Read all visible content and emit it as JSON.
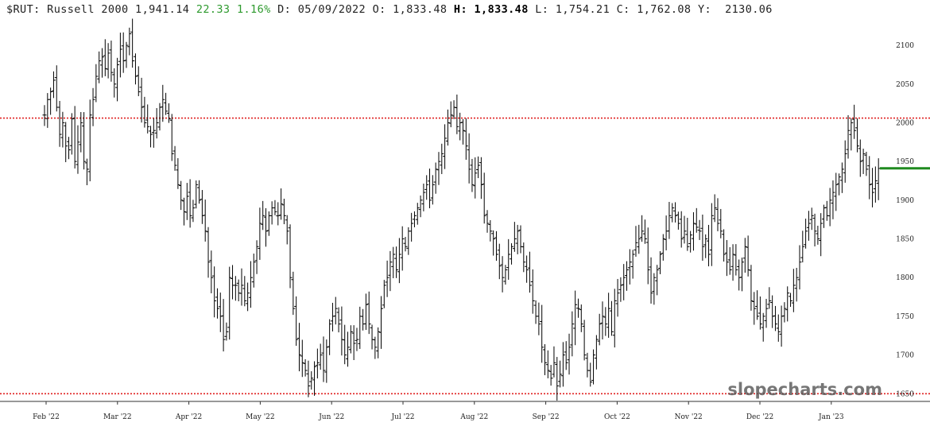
{
  "header": {
    "symbol": "$RUT:",
    "name": "Russell 2000",
    "last": "1,941.14",
    "change": "22.33",
    "change_pct": "1.16%",
    "date_label": "D:",
    "date": "05/09/2022",
    "open_label": "O:",
    "open": "1,833.48",
    "high_label": "H:",
    "high": "1,833.48",
    "low_label": "L:",
    "low": "1,754.21",
    "close_label": "C:",
    "close": "1,762.08",
    "y_label": "Y:",
    "y_value": "2130.06"
  },
  "watermark": "slopecharts.com",
  "colors": {
    "bars": "#000000",
    "resistance_line": "#e02020",
    "last_price_marker": "#1f8a1f",
    "up_change": "#2e9a2e",
    "axis": "#333333"
  },
  "chart_data": {
    "type": "ohlc",
    "ylim": [
      1640,
      2135
    ],
    "yticks": [
      1650,
      1700,
      1750,
      1800,
      1850,
      1900,
      1950,
      2000,
      2050,
      2100
    ],
    "xticks": [
      "Feb '22",
      "Mar '22",
      "Apr '22",
      "May '22",
      "Jun '22",
      "Jul '22",
      "Aug '22",
      "Sep '22",
      "Oct '22",
      "Nov '22",
      "Dec '22",
      "Jan '23"
    ],
    "horizontal_lines": [
      {
        "value": 2006,
        "style": "dotted",
        "color": "#e02020"
      },
      {
        "value": 1650,
        "style": "dotted",
        "color": "#e02020"
      }
    ],
    "last_price": 1941.14,
    "closes": [
      2010,
      2030,
      2040,
      2055,
      2020,
      1985,
      2000,
      1970,
      1965,
      2005,
      1950,
      1975,
      2000,
      1950,
      1940,
      2010,
      2030,
      2060,
      2080,
      2085,
      2070,
      2090,
      2065,
      2050,
      2075,
      2095,
      2080,
      2100,
      2115,
      2080,
      2060,
      2040,
      2020,
      2000,
      1995,
      1985,
      1990,
      2000,
      2020,
      2030,
      2015,
      2005,
      1960,
      1945,
      1920,
      1900,
      1885,
      1905,
      1880,
      1890,
      1920,
      1900,
      1880,
      1860,
      1820,
      1800,
      1770,
      1760,
      1750,
      1720,
      1730,
      1800,
      1790,
      1790,
      1780,
      1790,
      1770,
      1780,
      1800,
      1820,
      1840,
      1870,
      1880,
      1860,
      1880,
      1890,
      1885,
      1880,
      1895,
      1880,
      1860,
      1800,
      1760,
      1720,
      1700,
      1690,
      1680,
      1660,
      1670,
      1685,
      1690,
      1700,
      1680,
      1710,
      1740,
      1750,
      1760,
      1740,
      1720,
      1700,
      1710,
      1730,
      1715,
      1720,
      1750,
      1740,
      1765,
      1740,
      1720,
      1710,
      1730,
      1760,
      1790,
      1800,
      1820,
      1830,
      1810,
      1830,
      1850,
      1840,
      1860,
      1870,
      1880,
      1890,
      1900,
      1910,
      1920,
      1900,
      1920,
      1940,
      1950,
      1960,
      1980,
      2000,
      2010,
      2020,
      1995,
      2000,
      1990,
      1970,
      1940,
      1920,
      1935,
      1945,
      1920,
      1880,
      1870,
      1860,
      1850,
      1830,
      1815,
      1800,
      1810,
      1830,
      1840,
      1850,
      1860,
      1840,
      1820,
      1810,
      1790,
      1770,
      1750,
      1740,
      1710,
      1690,
      1680,
      1670,
      1690,
      1660,
      1675,
      1700,
      1690,
      1710,
      1740,
      1765,
      1760,
      1740,
      1700,
      1680,
      1665,
      1700,
      1720,
      1740,
      1750,
      1740,
      1760,
      1730,
      1770,
      1780,
      1790,
      1800,
      1810,
      1820,
      1830,
      1845,
      1850,
      1860,
      1850,
      1810,
      1780,
      1800,
      1810,
      1830,
      1850,
      1860,
      1880,
      1890,
      1880,
      1870,
      1850,
      1860,
      1840,
      1855,
      1870,
      1865,
      1860,
      1840,
      1850,
      1830,
      1880,
      1890,
      1870,
      1860,
      1830,
      1820,
      1810,
      1830,
      1810,
      1800,
      1820,
      1840,
      1810,
      1770,
      1760,
      1750,
      1740,
      1750,
      1760,
      1770,
      1750,
      1740,
      1730,
      1750,
      1760,
      1780,
      1770,
      1790,
      1800,
      1820,
      1840,
      1860,
      1870,
      1880,
      1860,
      1850,
      1870,
      1890,
      1880,
      1900,
      1910,
      1920,
      1930,
      1940,
      1960,
      1990,
      2000,
      1990,
      1970,
      1950,
      1960,
      1940,
      1920,
      1910,
      1925,
      1941
    ]
  }
}
